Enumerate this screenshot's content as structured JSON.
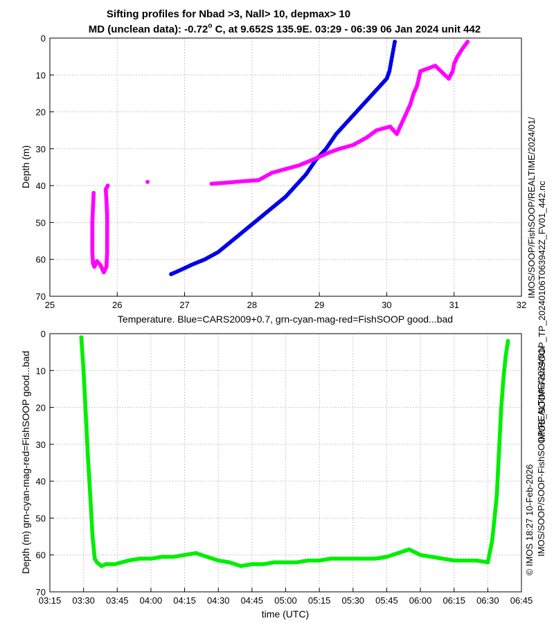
{
  "chart_data": [
    {
      "type": "scatter",
      "title_line1": "Sifting profiles for Nbad >3, Nall> 10, depmax> 10",
      "title_line2": "MD (unclean data): -0.72° C, at 9.652S 135.9E. 03:29 - 06:39 06 Jan 2024 unit 442",
      "title_line2_pre": "MD (unclean data): -0.72",
      "title_line2_deg": "o",
      "title_line2_post": " C, at 9.652S 135.9E. 03:29 - 06:39 06 Jan 2024 unit 442",
      "xlabel": "Temperature. Blue=CARS2009+0.7, grn-cyan-mag-red=FishSOOP good...bad",
      "ylabel": "Depth (m)",
      "xlim": [
        25,
        32
      ],
      "ylim": [
        70,
        0
      ],
      "xticks": [
        "25",
        "26",
        "27",
        "28",
        "29",
        "30",
        "31",
        "32"
      ],
      "yticks": [
        "0",
        "10",
        "20",
        "30",
        "40",
        "50",
        "60",
        "70"
      ],
      "grid": true,
      "series": [
        {
          "color": "#0000e6",
          "x": [
            30.12,
            30.1,
            30.08,
            30.06,
            30.04,
            30.02,
            30.0,
            29.85,
            29.7,
            29.55,
            29.4,
            29.25,
            29.1,
            28.95,
            28.8,
            28.65,
            28.5,
            28.3,
            28.1,
            27.9,
            27.7,
            27.5,
            27.3,
            27.1,
            26.95,
            26.8
          ],
          "y": [
            1,
            3,
            5,
            7,
            9,
            10,
            11,
            14,
            17,
            20,
            23,
            26,
            30,
            33,
            37,
            40,
            43,
            46,
            49,
            52,
            55,
            58,
            60,
            61.5,
            62.8,
            64
          ]
        },
        {
          "color": "#ff00ff",
          "x": [
            31.2,
            31.12,
            31.05,
            31.0,
            30.98,
            30.92,
            30.72,
            30.5,
            30.45,
            30.4,
            30.35,
            30.3,
            30.25,
            30.2,
            30.15,
            30.05,
            29.85,
            29.7,
            29.5,
            29.3,
            29.15,
            28.9,
            28.7,
            28.5,
            28.3,
            28.1,
            27.4,
            26.45
          ],
          "y": [
            1,
            3,
            5,
            7,
            9,
            11,
            7.5,
            9,
            13,
            15,
            18,
            20,
            22,
            24,
            26,
            24,
            25,
            27,
            29,
            30,
            31,
            33,
            34.5,
            35.5,
            36.5,
            38.5,
            39.5,
            39
          ],
          "note_group": "main"
        },
        {
          "color": "#ff00ff",
          "x": [
            25.65,
            25.64,
            25.63,
            25.63,
            25.63,
            25.64,
            25.66,
            25.7,
            25.75,
            25.8,
            25.84,
            25.85,
            25.85,
            25.85,
            25.84,
            25.83,
            25.86
          ],
          "y": [
            42,
            46,
            50,
            54,
            58,
            61,
            62,
            60.5,
            61.5,
            63.5,
            62,
            58,
            53,
            48,
            44,
            41,
            40
          ]
        }
      ]
    },
    {
      "type": "scatter",
      "xlabel": "time (UTC)",
      "ylabel": "Depth (m) grn-cyan-mag-red=FishSOOP good...bad",
      "xlim": [
        "03:15",
        "06:45"
      ],
      "ylim": [
        70,
        0
      ],
      "xticks": [
        "03:15",
        "03:30",
        "03:45",
        "04:00",
        "04:15",
        "04:30",
        "04:45",
        "05:00",
        "05:15",
        "05:30",
        "05:45",
        "06:00",
        "06:15",
        "06:30",
        "06:45"
      ],
      "yticks": [
        "0",
        "10",
        "20",
        "30",
        "40",
        "50",
        "60",
        "70"
      ],
      "grid": true,
      "series": [
        {
          "color": "#00ee00",
          "x": [
            "03:29",
            "03:30",
            "03:31",
            "03:32",
            "03:33",
            "03:34",
            "03:35",
            "03:36",
            "03:38",
            "03:40",
            "03:44",
            "03:50",
            "03:55",
            "04:00",
            "04:05",
            "04:10",
            "04:15",
            "04:20",
            "04:25",
            "04:30",
            "04:35",
            "04:40",
            "04:45",
            "04:50",
            "04:55",
            "05:00",
            "05:05",
            "05:10",
            "05:15",
            "05:20",
            "05:25",
            "05:30",
            "05:35",
            "05:40",
            "05:45",
            "05:50",
            "05:55",
            "06:00",
            "06:05",
            "06:10",
            "06:15",
            "06:20",
            "06:25",
            "06:30",
            "06:32",
            "06:34",
            "06:35",
            "06:36",
            "06:37",
            "06:38",
            "06:39"
          ],
          "y": [
            1,
            10,
            22,
            34,
            44,
            55,
            61,
            62,
            63,
            62.5,
            62.5,
            61.5,
            61,
            61,
            60.5,
            60.5,
            60,
            59.5,
            60.5,
            61.5,
            62,
            63,
            62.5,
            62.5,
            62,
            62,
            62,
            61.5,
            61.5,
            61,
            61,
            61,
            61,
            61,
            60.5,
            59.5,
            58.5,
            60,
            60.5,
            61,
            61.5,
            61.5,
            61.5,
            62,
            56,
            44,
            32,
            20,
            12,
            6,
            2
          ]
        }
      ]
    }
  ],
  "side_text": {
    "line_outer": "IMOS_SOOP-FishSOOP_TP_20240106T063942Z_FV01_442.nc",
    "line_inner_top": "IMOS/SOOP/FishSOOP/REALTIME/2024/01/",
    "line_copyright": "© IMOS 18:27 10-Feb-2026",
    "line_path": "IMOS/SOOP/SOOP-FishSOOP/REALTIME/2024/01/"
  }
}
